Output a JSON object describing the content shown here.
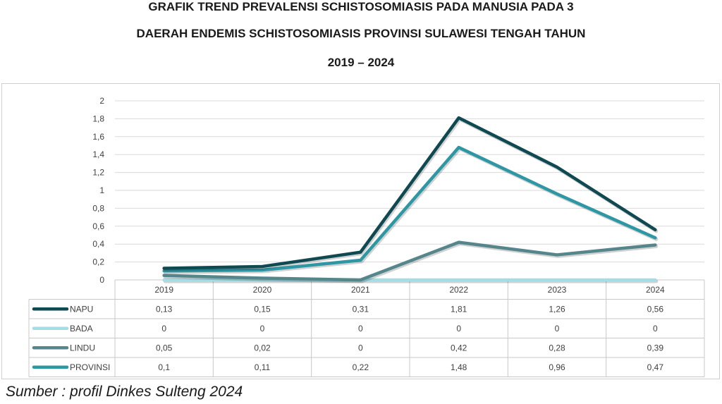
{
  "title_lines": [
    "GRAFIK TREND PREVALENSI SCHISTOSOMIASIS PADA MANUSIA PADA 3",
    "DAERAH ENDEMIS SCHISTOSOMIASIS PROVINSI SULAWESI TENGAH TAHUN",
    "2019 – 2024"
  ],
  "source": "Sumber : profil Dinkes Sulteng 2024",
  "chart_data": {
    "type": "line",
    "title": "GRAFIK TREND PREVALENSI SCHISTOSOMIASIS PADA MANUSIA PADA 3 DAERAH ENDEMIS SCHISTOSOMIASIS PROVINSI SULAWESI TENGAH TAHUN 2019 – 2024",
    "categories": [
      "2019",
      "2020",
      "2021",
      "2022",
      "2023",
      "2024"
    ],
    "ylim": [
      0,
      2
    ],
    "yticks": [
      "0",
      "0,2",
      "0,4",
      "0,6",
      "0,8",
      "1",
      "1,2",
      "1,4",
      "1,6",
      "1,8",
      "2"
    ],
    "grid": true,
    "legend": "data-table",
    "series": [
      {
        "name": "NAPU",
        "color": "#0f4a52",
        "values": [
          0.13,
          0.15,
          0.31,
          1.81,
          1.26,
          0.56
        ],
        "labels": [
          "0,13",
          "0,15",
          "0,31",
          "1,81",
          "1,26",
          "0,56"
        ]
      },
      {
        "name": "BADA",
        "color": "#a6dce4",
        "values": [
          0,
          0,
          0,
          0,
          0,
          0
        ],
        "labels": [
          "0",
          "0",
          "0",
          "0",
          "0",
          "0"
        ]
      },
      {
        "name": "LINDU",
        "color": "#55868c",
        "values": [
          0.05,
          0.02,
          0,
          0.42,
          0.28,
          0.39
        ],
        "labels": [
          "0,05",
          "0,02",
          "0",
          "0,42",
          "0,28",
          "0,39"
        ]
      },
      {
        "name": "PROVINSI",
        "color": "#2e97a4",
        "values": [
          0.1,
          0.11,
          0.22,
          1.48,
          0.96,
          0.47
        ],
        "labels": [
          "0,1",
          "0,11",
          "0,22",
          "1,48",
          "0,96",
          "0,47"
        ]
      }
    ]
  }
}
